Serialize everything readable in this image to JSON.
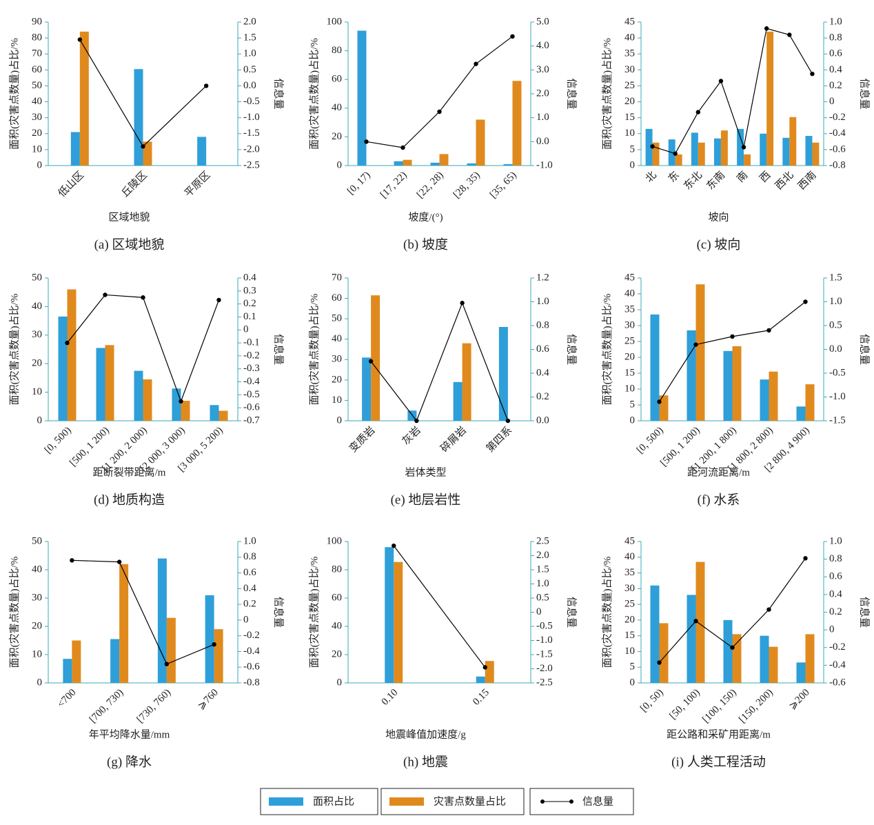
{
  "chart_data": [
    {
      "type": "bar",
      "title": "(a) 区域地貌",
      "xlabel": "区域地貌",
      "ylabel": "面积(灾害点数量)占比/%",
      "y2label": "信息量",
      "categories": [
        "低山区",
        "丘陵区",
        "平原区"
      ],
      "series": [
        {
          "name": "面积占比",
          "color": "#2e9fd8",
          "values": [
            21,
            60.5,
            18
          ]
        },
        {
          "name": "灾害点数量占比",
          "color": "#e08a1e",
          "values": [
            84,
            15,
            0
          ]
        },
        {
          "name": "信息量",
          "color": "#000000",
          "axis": "y2",
          "values": [
            1.45,
            -1.9,
            0
          ]
        }
      ],
      "ylim": [
        0,
        90
      ],
      "yticks": [
        0,
        10,
        20,
        30,
        40,
        50,
        60,
        70,
        80,
        90
      ],
      "y2lim": [
        -2.5,
        2
      ],
      "y2ticks": [
        -2.5,
        {
          "value": -2,
          "label": "-2.0"
        },
        -1.5,
        {
          "value": -1,
          "label": "-1.0"
        },
        -0.5,
        {
          "value": 0,
          "label": "0.0"
        },
        0.5,
        {
          "value": 1,
          "label": "1.0"
        },
        1.5,
        {
          "value": 2,
          "label": "2.0"
        }
      ]
    },
    {
      "type": "bar",
      "title": "(b) 坡度",
      "xlabel": "坡度/(°)",
      "ylabel": "面积(灾害点数量)占比/%",
      "y2label": "信息量",
      "categories": [
        "[0, 17)",
        "[17, 22)",
        "[22, 28)",
        "[28, 35)",
        "[35, 65)"
      ],
      "series": [
        {
          "name": "面积占比",
          "color": "#2e9fd8",
          "values": [
            94,
            3,
            2,
            1.5,
            1
          ]
        },
        {
          "name": "灾害点数量占比",
          "color": "#e08a1e",
          "values": [
            0,
            4,
            8,
            32,
            59
          ]
        },
        {
          "name": "信息量",
          "color": "#000000",
          "axis": "y2",
          "values": [
            0,
            -0.25,
            1.25,
            3.25,
            4.4
          ]
        }
      ],
      "ylim": [
        0,
        100
      ],
      "yticks": [
        0,
        20,
        40,
        60,
        80,
        100
      ],
      "y2lim": [
        -1,
        5
      ],
      "y2ticks": [
        {
          "value": -1,
          "label": "-1.0"
        },
        {
          "value": 0,
          "label": "0.0"
        },
        {
          "value": 1,
          "label": "1.0"
        },
        {
          "value": 2,
          "label": "2.0"
        },
        {
          "value": 3,
          "label": "3.0"
        },
        {
          "value": 4,
          "label": "4.0"
        },
        {
          "value": 5,
          "label": "5.0"
        }
      ]
    },
    {
      "type": "bar",
      "title": "(c) 坡向",
      "xlabel": "坡向",
      "ylabel": "面积(灾害点数量)占比/%",
      "y2label": "信息量",
      "categories": [
        "北",
        "东",
        "东北",
        "东南",
        "南",
        "西",
        "西北",
        "西南"
      ],
      "series": [
        {
          "name": "面积占比",
          "color": "#2e9fd8",
          "values": [
            11.5,
            8.2,
            10.3,
            8.5,
            11.5,
            10,
            8.7,
            9.3
          ]
        },
        {
          "name": "灾害点数量占比",
          "color": "#e08a1e",
          "values": [
            7.2,
            3.5,
            7.2,
            11,
            3.5,
            42,
            15.2,
            7.2
          ]
        },
        {
          "name": "信息量",
          "color": "#000000",
          "axis": "y2",
          "values": [
            -0.56,
            -0.65,
            -0.13,
            0.26,
            -0.57,
            0.92,
            0.84,
            0.35
          ]
        }
      ],
      "ylim": [
        0,
        45
      ],
      "yticks": [
        0,
        5,
        10,
        15,
        20,
        25,
        30,
        35,
        40,
        45
      ],
      "y2lim": [
        -0.8,
        1
      ],
      "y2ticks": [
        -0.8,
        -0.6,
        -0.4,
        -0.2,
        0,
        0.2,
        0.4,
        0.6,
        0.8,
        {
          "value": 1,
          "label": "1.0"
        }
      ]
    },
    {
      "type": "bar",
      "title": "(d) 地质构造",
      "xlabel": "距断裂带距离/m",
      "ylabel": "面积(灾害点数量)占比/%",
      "y2label": "信息量",
      "categories": [
        "[0, 500)",
        "[500, 1 200)",
        "[1 200, 2 000)",
        "[2 000, 3 000)",
        "[3 000, 5 200)"
      ],
      "series": [
        {
          "name": "面积占比",
          "color": "#2e9fd8",
          "values": [
            36.5,
            25.5,
            17.5,
            11.3,
            5.5
          ]
        },
        {
          "name": "灾害点数量占比",
          "color": "#e08a1e",
          "values": [
            46,
            26.5,
            14.5,
            7,
            3.5
          ]
        },
        {
          "name": "信息量",
          "color": "#000000",
          "axis": "y2",
          "values": [
            -0.1,
            0.27,
            0.25,
            -0.55,
            0.23
          ]
        }
      ],
      "ylim": [
        0,
        50
      ],
      "yticks": [
        0,
        10,
        20,
        30,
        40,
        50
      ],
      "y2lim": [
        -0.7,
        0.4
      ],
      "y2ticks": [
        -0.7,
        -0.6,
        -0.5,
        -0.4,
        -0.3,
        -0.2,
        -0.1,
        0,
        0.1,
        0.2,
        0.3,
        0.4
      ]
    },
    {
      "type": "bar",
      "title": "(e) 地层岩性",
      "xlabel": "岩体类型",
      "ylabel": "面积(灾害点数量)占比/%",
      "y2label": "信息量",
      "categories": [
        "变质岩",
        "灰岩",
        "碎屑岩",
        "第四系"
      ],
      "series": [
        {
          "name": "面积占比",
          "color": "#2e9fd8",
          "values": [
            31,
            5,
            19,
            46
          ]
        },
        {
          "name": "灾害点数量占比",
          "color": "#e08a1e",
          "values": [
            61.5,
            0,
            38,
            0
          ]
        },
        {
          "name": "信息量",
          "color": "#000000",
          "axis": "y2",
          "values": [
            0.5,
            0,
            0.99,
            0
          ]
        }
      ],
      "ylim": [
        0,
        70
      ],
      "yticks": [
        0,
        10,
        20,
        30,
        40,
        50,
        60,
        70
      ],
      "y2lim": [
        0,
        1.2
      ],
      "y2ticks": [
        {
          "value": 0,
          "label": "0.0"
        },
        0.2,
        0.4,
        0.6,
        0.8,
        {
          "value": 1,
          "label": "1.0"
        },
        1.2
      ]
    },
    {
      "type": "bar",
      "title": "(f) 水系",
      "xlabel": "距河流距离/m",
      "ylabel": "面积(灾害点数量)占比/%",
      "y2label": "信息量",
      "categories": [
        "[0, 500)",
        "[500, 1 200)",
        "[1 200, 1 800)",
        "[1 800, 2 800)",
        "[2 800, 4 900)"
      ],
      "series": [
        {
          "name": "面积占比",
          "color": "#2e9fd8",
          "values": [
            33.5,
            28.5,
            22,
            13,
            4.5
          ]
        },
        {
          "name": "灾害点数量占比",
          "color": "#e08a1e",
          "values": [
            8,
            43,
            23.5,
            15.5,
            11.5
          ]
        },
        {
          "name": "信息量",
          "color": "#000000",
          "axis": "y2",
          "values": [
            -1.1,
            0.1,
            0.27,
            0.4,
            1
          ]
        }
      ],
      "ylim": [
        0,
        45
      ],
      "yticks": [
        0,
        5,
        10,
        15,
        20,
        25,
        30,
        35,
        40,
        45
      ],
      "y2lim": [
        -1.5,
        1.5
      ],
      "y2ticks": [
        -1.5,
        {
          "value": -1,
          "label": "-1.0"
        },
        -0.5,
        {
          "value": 0,
          "label": "0.0"
        },
        0.5,
        {
          "value": 1,
          "label": "1.0"
        },
        1.5
      ]
    },
    {
      "type": "bar",
      "title": "(g) 降水",
      "xlabel": "年平均降水量/mm",
      "ylabel": "面积(灾害点数量)占比/%",
      "y2label": "信息量",
      "categories": [
        "<700",
        "[700, 730)",
        "[730, 760)",
        "⩾760"
      ],
      "series": [
        {
          "name": "面积占比",
          "color": "#2e9fd8",
          "values": [
            8.5,
            15.5,
            44,
            31
          ]
        },
        {
          "name": "灾害点数量占比",
          "color": "#e08a1e",
          "values": [
            15,
            42,
            23,
            19
          ]
        },
        {
          "name": "信息量",
          "color": "#000000",
          "axis": "y2",
          "values": [
            0.76,
            0.74,
            -0.56,
            -0.31
          ]
        }
      ],
      "ylim": [
        0,
        50
      ],
      "yticks": [
        0,
        10,
        20,
        30,
        40,
        50
      ],
      "y2lim": [
        -0.8,
        1
      ],
      "y2ticks": [
        -0.8,
        -0.6,
        -0.4,
        -0.2,
        0,
        0.2,
        0.4,
        0.6,
        0.8,
        {
          "value": 1,
          "label": "1.0"
        }
      ]
    },
    {
      "type": "bar",
      "title": "(h) 地震",
      "xlabel": "地震峰值加速度/g",
      "ylabel": "面积(灾害点数量)占比/%",
      "y2label": "信息量",
      "categories": [
        "0.10",
        "0.15"
      ],
      "series": [
        {
          "name": "面积占比",
          "color": "#2e9fd8",
          "values": [
            96,
            4.5
          ]
        },
        {
          "name": "灾害点数量占比",
          "color": "#e08a1e",
          "values": [
            85.5,
            15.5
          ]
        },
        {
          "name": "信息量",
          "color": "#000000",
          "axis": "y2",
          "values": [
            2.35,
            -1.95
          ]
        }
      ],
      "ylim": [
        0,
        100
      ],
      "yticks": [
        0,
        20,
        40,
        60,
        80,
        100
      ],
      "y2lim": [
        -2.5,
        2.5
      ],
      "y2ticks": [
        -2.5,
        {
          "value": -2,
          "label": "-2.0"
        },
        -1.5,
        {
          "value": -1,
          "label": "-1.0"
        },
        -0.5,
        0,
        0.5,
        {
          "value": 1,
          "label": "1.0"
        },
        1.5,
        {
          "value": 2,
          "label": "2.0"
        },
        2.5
      ]
    },
    {
      "type": "bar",
      "title": "(i) 人类工程活动",
      "xlabel": "距公路和采矿用距离/m",
      "ylabel": "面积(灾害点数量)占比/%",
      "y2label": "信息量",
      "categories": [
        "[0, 50)",
        "[50, 100)",
        "[100, 150)",
        "[150, 200)",
        "⩾200"
      ],
      "series": [
        {
          "name": "面积占比",
          "color": "#2e9fd8",
          "values": [
            31,
            28,
            20,
            15,
            6.5
          ]
        },
        {
          "name": "灾害点数量占比",
          "color": "#e08a1e",
          "values": [
            19,
            38.5,
            15.5,
            11.5,
            15.5
          ]
        },
        {
          "name": "信息量",
          "color": "#000000",
          "axis": "y2",
          "values": [
            -0.37,
            0.1,
            -0.2,
            0.23,
            0.81
          ]
        }
      ],
      "ylim": [
        0,
        45
      ],
      "yticks": [
        0,
        5,
        10,
        15,
        20,
        25,
        30,
        35,
        40,
        45
      ],
      "y2lim": [
        -0.6,
        1
      ],
      "y2ticks": [
        -0.6,
        -0.4,
        -0.2,
        0,
        0.2,
        0.4,
        0.6,
        0.8,
        {
          "value": 1,
          "label": "1.0"
        }
      ]
    }
  ]
}
